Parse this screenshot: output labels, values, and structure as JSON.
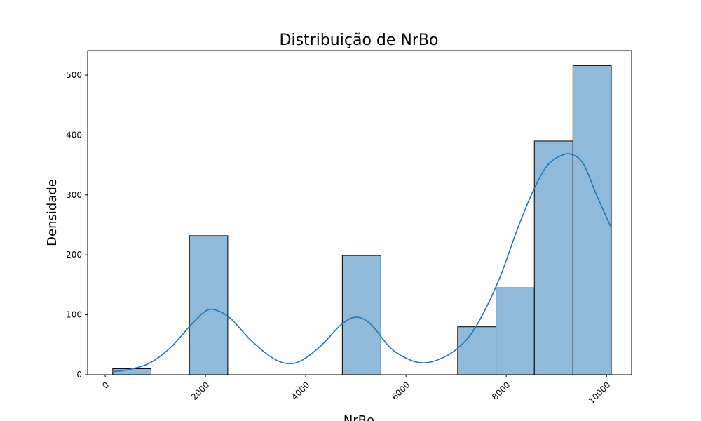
{
  "chart_data": {
    "type": "bar",
    "title": "Distribuição de NrBo",
    "xlabel": "NrBo",
    "ylabel": "Densidade",
    "xlim": [
      -350,
      10500
    ],
    "ylim": [
      0,
      541
    ],
    "x_ticks": [
      0,
      2000,
      4000,
      6000,
      8000,
      10000
    ],
    "x_tick_labels": [
      "0",
      "2000",
      "4000",
      "6000",
      "8000",
      "10000"
    ],
    "y_ticks": [
      0,
      100,
      200,
      300,
      400,
      500
    ],
    "y_tick_labels": [
      "0",
      "100",
      "200",
      "300",
      "400",
      "500"
    ],
    "grid": false,
    "bins": [
      {
        "x0": 150,
        "x1": 915,
        "count": 10
      },
      {
        "x0": 1680,
        "x1": 2445,
        "count": 232
      },
      {
        "x0": 4730,
        "x1": 5500,
        "count": 199
      },
      {
        "x0": 7030,
        "x1": 7795,
        "count": 80
      },
      {
        "x0": 7795,
        "x1": 8560,
        "count": 145
      },
      {
        "x0": 8560,
        "x1": 9330,
        "count": 390
      },
      {
        "x0": 9330,
        "x1": 10095,
        "count": 516
      }
    ],
    "kde": {
      "x": [
        150,
        500,
        900,
        1300,
        1700,
        2000,
        2200,
        2500,
        2900,
        3300,
        3600,
        3900,
        4300,
        4700,
        5000,
        5300,
        5700,
        6100,
        6400,
        6700,
        7000,
        7300,
        7600,
        7900,
        8200,
        8500,
        8800,
        9100,
        9330,
        9550,
        9800,
        10095
      ],
      "y": [
        5,
        9,
        20,
        45,
        82,
        106,
        108,
        94,
        58,
        30,
        19,
        23,
        48,
        83,
        96,
        84,
        44,
        24,
        20,
        27,
        42,
        68,
        112,
        168,
        238,
        300,
        347,
        366,
        367,
        350,
        300,
        245
      ]
    },
    "colors": {
      "bar_fill": "#8fbad9",
      "bar_edge": "#000000",
      "kde_line": "#1f77b4"
    }
  }
}
